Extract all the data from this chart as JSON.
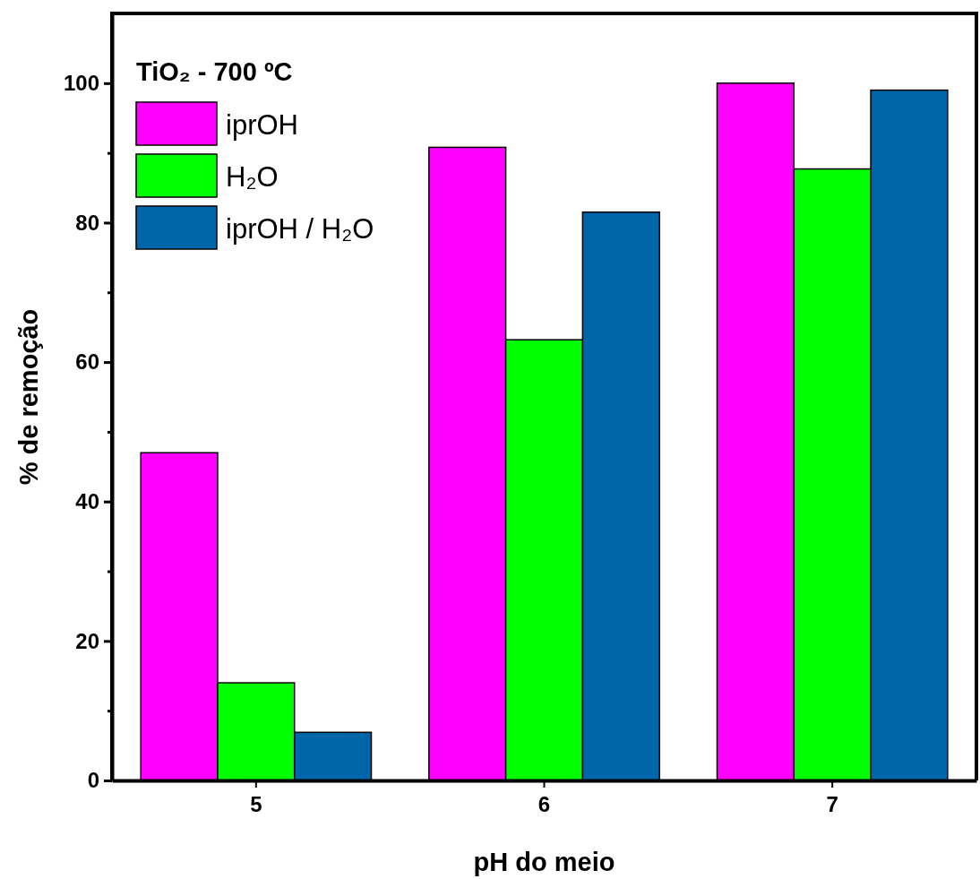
{
  "chart_data": {
    "type": "bar",
    "xlabel": "pH do meio",
    "ylabel": "% de remoção",
    "legend_title": "TiO₂ - 700 ºC",
    "legend": "top left",
    "categories": [
      "5",
      "6",
      "7"
    ],
    "series": [
      {
        "name": "iprOH",
        "color": "#ff00ff",
        "values": [
          47,
          90.8,
          100
        ]
      },
      {
        "name": "H₂O",
        "color": "#00ff00",
        "values": [
          14,
          63.2,
          87.7
        ]
      },
      {
        "name": "iprOH / H₂O",
        "color": "#0066aa",
        "values": [
          6.9,
          81.5,
          99
        ]
      }
    ],
    "ylim": [
      0,
      110
    ],
    "yticks": [
      0,
      {
        "value": 10,
        "label": null
      },
      20,
      {
        "value": 30,
        "label": null
      },
      40,
      {
        "value": 50,
        "label": null
      },
      60,
      {
        "value": 70,
        "label": null
      },
      80,
      {
        "value": 90,
        "label": null
      },
      100
    ]
  }
}
